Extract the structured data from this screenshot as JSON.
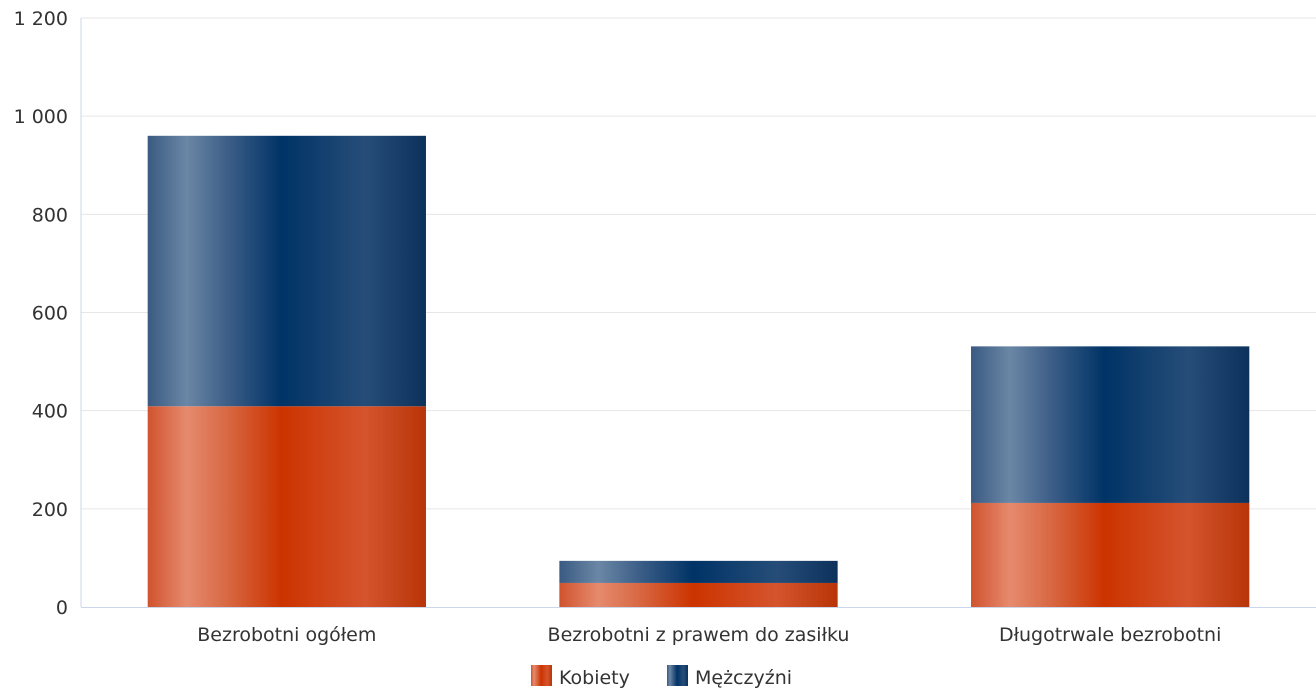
{
  "chart_data": {
    "type": "bar",
    "stacked": true,
    "title": "",
    "xlabel": "",
    "ylabel": "",
    "categories": [
      "Bezrobotni ogółem",
      "Bezrobotni z prawem do zasiłku",
      "Długotrwale bezrobotni"
    ],
    "series": [
      {
        "name": "Kobiety",
        "values": [
          409,
          49,
          212
        ],
        "color": "#cc3300"
      },
      {
        "name": "Mężczyźni",
        "values": [
          551,
          45,
          319
        ],
        "color": "#003366"
      }
    ],
    "ylim": [
      0,
      1200
    ],
    "yticks": [
      0,
      200,
      400,
      600,
      800,
      1000,
      1200
    ],
    "ytick_labels": [
      "0",
      "200",
      "400",
      "600",
      "800",
      "1 000",
      "1 200"
    ],
    "grid": true,
    "legend": "bottom-center"
  }
}
